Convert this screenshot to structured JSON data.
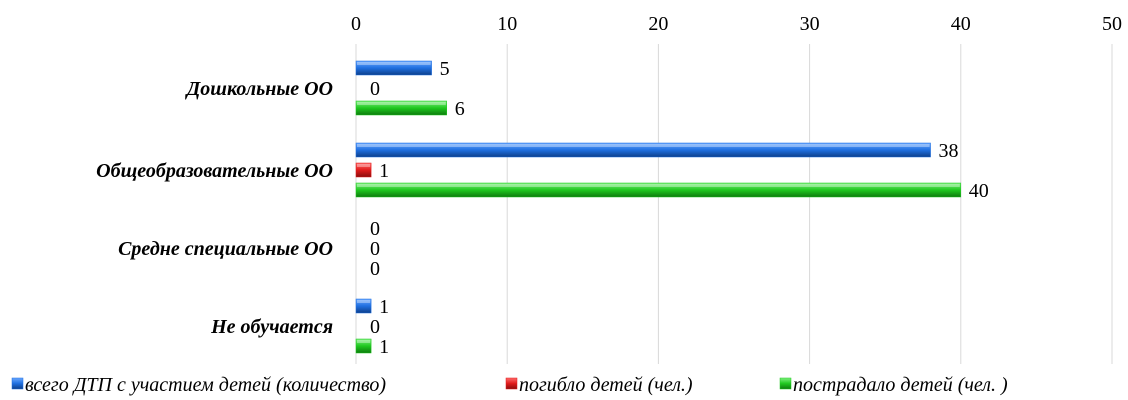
{
  "chart_data": {
    "type": "bar",
    "orientation": "horizontal",
    "categories": [
      "Дошкольные ОО",
      "Общеобразовательные ОО",
      "Средне специальные ОО",
      "Не обучается"
    ],
    "series": [
      {
        "name": "всего ДТП с участием детей (количество)",
        "color": "#1f6fe0",
        "values": [
          5,
          38,
          0,
          1
        ]
      },
      {
        "name": "погибло детей (чел.)",
        "color": "#e01b1b",
        "values": [
          0,
          1,
          0,
          0
        ]
      },
      {
        "name": "пострадало детей (чел. )",
        "color": "#1fc81f",
        "values": [
          6,
          40,
          0,
          1
        ]
      }
    ],
    "xlim": [
      0,
      50
    ],
    "xticks": [
      "0",
      "10",
      "20",
      "30",
      "40",
      "50"
    ],
    "xaxis_position": "top",
    "grid": true,
    "legend_position": "bottom",
    "data_labels": true
  }
}
